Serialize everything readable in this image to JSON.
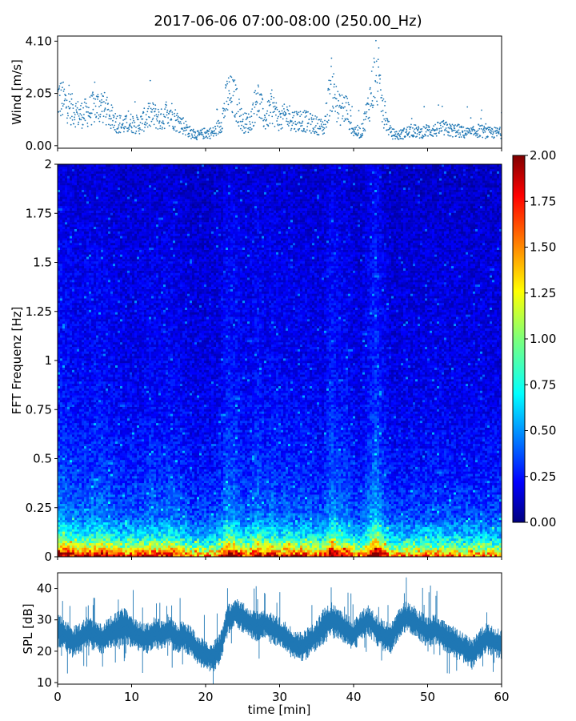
{
  "title": "2017-06-06 07:00-08:00 (250.00_Hz)",
  "chart_data": [
    {
      "type": "scatter",
      "ylabel": "Wind [m/s]",
      "xlim": [
        0,
        60
      ],
      "ylim": [
        -0.1,
        4.3
      ],
      "yticks": [
        0.0,
        2.05,
        4.1
      ],
      "ytick_labels": [
        "0.00",
        "2.05",
        "4.10"
      ],
      "color": "#1f77b4",
      "series": [
        {
          "x": [
            0,
            1,
            2,
            3,
            4,
            5,
            6,
            7,
            8,
            9,
            10,
            11,
            12,
            13,
            14,
            15,
            16,
            17,
            18,
            19,
            20,
            21,
            22,
            23,
            24,
            25,
            26,
            27,
            28,
            29,
            30,
            31,
            32,
            33,
            34,
            35,
            36,
            37,
            38,
            39,
            40,
            41,
            42,
            43,
            44,
            45,
            46,
            47,
            48,
            49,
            50,
            51,
            52,
            53,
            54,
            55,
            56,
            57,
            58,
            59,
            60
          ],
          "y": [
            1.9,
            1.7,
            1.4,
            1.2,
            1.3,
            1.5,
            1.6,
            1.2,
            0.9,
            0.8,
            0.9,
            0.8,
            1.1,
            1.2,
            1.0,
            1.4,
            1.0,
            0.8,
            0.5,
            0.4,
            0.5,
            0.5,
            0.8,
            2.0,
            1.8,
            0.9,
            0.9,
            1.9,
            1.0,
            1.5,
            1.0,
            1.2,
            1.0,
            1.0,
            0.9,
            0.8,
            0.7,
            2.4,
            1.4,
            1.5,
            0.6,
            0.5,
            1.5,
            2.9,
            1.3,
            0.5,
            0.4,
            0.5,
            0.6,
            0.5,
            0.6,
            0.6,
            0.7,
            0.6,
            0.6,
            0.5,
            0.5,
            0.6,
            0.5,
            0.5,
            0.5
          ]
        }
      ]
    },
    {
      "type": "heatmap",
      "ylabel": "FFT Frequenz [Hz]",
      "xlim": [
        0,
        60
      ],
      "ylim": [
        0,
        2
      ],
      "yticks": [
        0,
        0.25,
        0.5,
        0.75,
        1,
        1.25,
        1.5,
        1.75,
        2
      ],
      "ytick_labels": [
        "0",
        "0.25",
        "0.5",
        "0.75",
        "1",
        "1.25",
        "1.5",
        "1.75",
        "2"
      ],
      "colormap": "jet",
      "colorbar": {
        "min": 0.0,
        "max": 2.0,
        "ticks": [
          "0.00",
          "0.25",
          "0.50",
          "0.75",
          "1.00",
          "1.25",
          "1.50",
          "1.75",
          "2.00"
        ]
      },
      "frequency_profile": {
        "freq": [
          0.0,
          0.02,
          0.05,
          0.1,
          0.15,
          0.2,
          0.3,
          0.4,
          0.5,
          0.75,
          1.0,
          1.5,
          2.0
        ],
        "mean_level": [
          1.8,
          1.5,
          1.1,
          0.75,
          0.6,
          0.45,
          0.38,
          0.33,
          0.3,
          0.25,
          0.22,
          0.2,
          0.15
        ]
      }
    },
    {
      "type": "area",
      "ylabel": "SPL [dB]",
      "xlabel": "time [min]",
      "xlim": [
        0,
        60
      ],
      "ylim": [
        9.5,
        45
      ],
      "xticks": [
        0,
        10,
        20,
        30,
        40,
        50,
        60
      ],
      "xtick_labels": [
        "0",
        "10",
        "20",
        "30",
        "40",
        "50",
        "60"
      ],
      "yticks": [
        10,
        20,
        30,
        40
      ],
      "ytick_labels": [
        "10",
        "20",
        "30",
        "40"
      ],
      "color": "#1f77b4",
      "series": [
        {
          "x": [
            0,
            1,
            2,
            3,
            4,
            5,
            6,
            7,
            8,
            9,
            10,
            11,
            12,
            13,
            14,
            15,
            16,
            17,
            18,
            19,
            20,
            21,
            22,
            23,
            24,
            25,
            26,
            27,
            28,
            29,
            30,
            31,
            32,
            33,
            34,
            35,
            36,
            37,
            38,
            39,
            40,
            41,
            42,
            43,
            44,
            45,
            46,
            47,
            48,
            49,
            50,
            51,
            52,
            53,
            54,
            55,
            56,
            57,
            58,
            59,
            60
          ],
          "y": [
            27,
            25,
            23,
            24,
            26,
            25,
            24,
            26,
            27,
            28,
            26,
            25,
            24,
            26,
            25,
            27,
            24,
            25,
            23,
            20,
            19,
            18,
            21,
            30,
            32,
            31,
            29,
            28,
            29,
            27,
            26,
            24,
            22,
            21,
            23,
            25,
            28,
            30,
            29,
            27,
            25,
            28,
            30,
            27,
            25,
            24,
            28,
            31,
            30,
            28,
            26,
            27,
            25,
            24,
            22,
            21,
            19,
            22,
            24,
            23,
            22
          ],
          "spread": [
            6,
            5,
            5,
            5,
            5,
            5,
            5,
            5,
            6,
            6,
            5,
            5,
            5,
            5,
            5,
            5,
            5,
            5,
            5,
            5,
            5,
            5,
            5,
            5,
            5,
            5,
            5,
            5,
            5,
            5,
            5,
            5,
            5,
            5,
            5,
            5,
            6,
            6,
            5,
            5,
            5,
            5,
            5,
            5,
            5,
            5,
            5,
            5,
            5,
            5,
            5,
            5,
            5,
            5,
            5,
            5,
            5,
            5,
            5,
            5,
            5
          ]
        }
      ]
    }
  ]
}
